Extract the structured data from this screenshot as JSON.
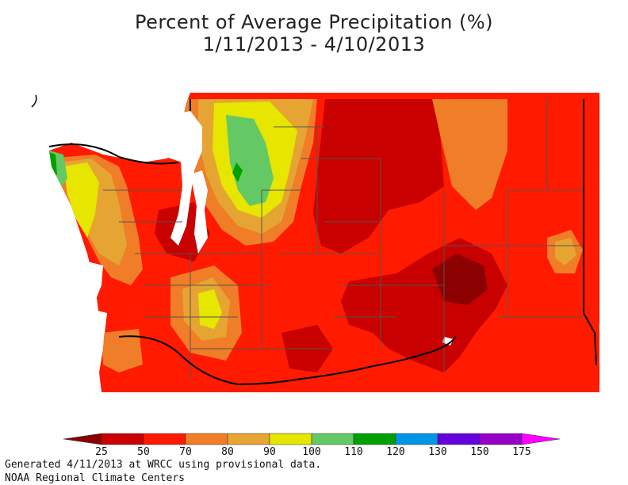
{
  "title": {
    "line1": "Percent of Average Precipitation (%)",
    "line2": "1/11/2013 - 4/10/2013"
  },
  "legend": {
    "bins": [
      {
        "color": "#8b0000"
      },
      {
        "color": "#c80000"
      },
      {
        "color": "#ff1a00"
      },
      {
        "color": "#f07d28"
      },
      {
        "color": "#e6a532"
      },
      {
        "color": "#e6e600"
      },
      {
        "color": "#64c864"
      },
      {
        "color": "#00a000"
      },
      {
        "color": "#0096e6"
      },
      {
        "color": "#6400dc"
      },
      {
        "color": "#9600c8"
      },
      {
        "color": "#ff00ff"
      }
    ],
    "ticks": [
      "25",
      "50",
      "70",
      "80",
      "90",
      "100",
      "110",
      "120",
      "130",
      "150",
      "175"
    ]
  },
  "footer": {
    "line1": "Generated 4/11/2013 at WRCC using provisional data.",
    "line2": "NOAA Regional Climate Centers"
  },
  "colors": {
    "water": "#ffffff",
    "border": "#000000",
    "county_line": "#555555"
  }
}
